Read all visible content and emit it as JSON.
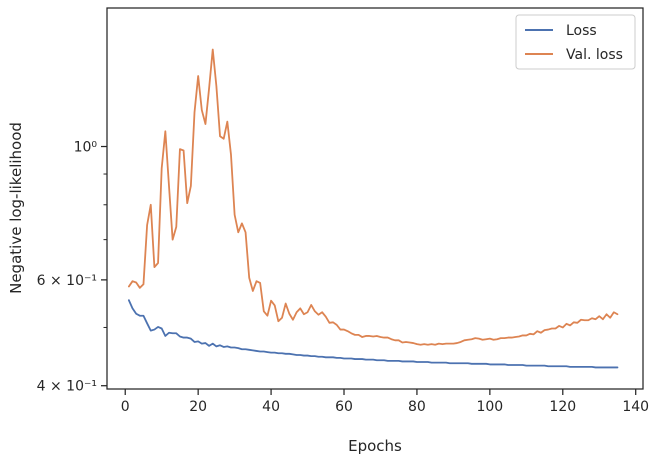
{
  "chart_data": {
    "type": "line",
    "xlabel": "Epochs",
    "ylabel": "Negative log-likelihood",
    "xlim": [
      -5,
      142
    ],
    "ylim": [
      0.395,
      1.7
    ],
    "yscale": "log",
    "grid": false,
    "legend_position": "top-right",
    "x_ticks": [
      0,
      20,
      40,
      60,
      80,
      100,
      120,
      140
    ],
    "x_tick_labels": [
      "0",
      "20",
      "40",
      "60",
      "80",
      "100",
      "120",
      "140"
    ],
    "y_major_ticks": [
      0.4,
      0.6,
      1.0
    ],
    "y_major_labels": [
      "4 × 10⁻¹",
      "6 × 10⁻¹",
      "10⁰"
    ],
    "y_minor_ticks": [
      0.5,
      0.7,
      0.8,
      0.9
    ],
    "series": [
      {
        "name": "Loss",
        "color": "#4c72b0",
        "x": [
          1,
          2,
          3,
          4,
          5,
          6,
          7,
          8,
          9,
          10,
          11,
          12,
          13,
          14,
          15,
          16,
          17,
          18,
          19,
          20,
          21,
          22,
          23,
          24,
          25,
          26,
          27,
          28,
          29,
          30,
          31,
          32,
          33,
          34,
          35,
          36,
          37,
          38,
          39,
          40,
          41,
          42,
          43,
          44,
          45,
          46,
          47,
          48,
          49,
          50,
          51,
          52,
          53,
          54,
          55,
          56,
          57,
          58,
          59,
          60,
          61,
          62,
          63,
          64,
          65,
          66,
          67,
          68,
          69,
          70,
          71,
          72,
          73,
          74,
          75,
          76,
          77,
          78,
          79,
          80,
          81,
          82,
          83,
          84,
          85,
          86,
          87,
          88,
          89,
          90,
          91,
          92,
          93,
          94,
          95,
          96,
          97,
          98,
          99,
          100,
          101,
          102,
          103,
          104,
          105,
          106,
          107,
          108,
          109,
          110,
          111,
          112,
          113,
          114,
          115,
          116,
          117,
          118,
          119,
          120,
          121,
          122,
          123,
          124,
          125,
          126,
          127,
          128,
          129,
          130,
          131,
          132,
          133,
          134,
          135
        ],
        "values": [
          0.555,
          0.538,
          0.527,
          0.523,
          0.523,
          0.508,
          0.494,
          0.496,
          0.501,
          0.498,
          0.484,
          0.49,
          0.489,
          0.489,
          0.483,
          0.481,
          0.481,
          0.479,
          0.473,
          0.474,
          0.47,
          0.471,
          0.466,
          0.47,
          0.465,
          0.467,
          0.464,
          0.465,
          0.463,
          0.463,
          0.462,
          0.46,
          0.46,
          0.459,
          0.458,
          0.457,
          0.456,
          0.456,
          0.455,
          0.454,
          0.454,
          0.453,
          0.453,
          0.452,
          0.452,
          0.451,
          0.45,
          0.45,
          0.449,
          0.449,
          0.448,
          0.448,
          0.447,
          0.447,
          0.446,
          0.446,
          0.446,
          0.445,
          0.445,
          0.444,
          0.444,
          0.444,
          0.443,
          0.443,
          0.443,
          0.442,
          0.442,
          0.442,
          0.441,
          0.441,
          0.441,
          0.44,
          0.44,
          0.44,
          0.44,
          0.439,
          0.439,
          0.439,
          0.439,
          0.438,
          0.438,
          0.438,
          0.438,
          0.437,
          0.437,
          0.437,
          0.437,
          0.437,
          0.436,
          0.436,
          0.436,
          0.436,
          0.436,
          0.436,
          0.435,
          0.435,
          0.435,
          0.435,
          0.435,
          0.434,
          0.434,
          0.434,
          0.434,
          0.434,
          0.433,
          0.433,
          0.433,
          0.433,
          0.433,
          0.432,
          0.432,
          0.432,
          0.432,
          0.432,
          0.432,
          0.431,
          0.431,
          0.431,
          0.431,
          0.431,
          0.431,
          0.43,
          0.43,
          0.43,
          0.43,
          0.43,
          0.43,
          0.43,
          0.429,
          0.429,
          0.429,
          0.429,
          0.429,
          0.429,
          0.429
        ]
      },
      {
        "name": "Val. loss",
        "color": "#dd8452",
        "x": [
          1,
          2,
          3,
          4,
          5,
          6,
          7,
          8,
          9,
          10,
          11,
          12,
          13,
          14,
          15,
          16,
          17,
          18,
          19,
          20,
          21,
          22,
          23,
          24,
          25,
          26,
          27,
          28,
          29,
          30,
          31,
          32,
          33,
          34,
          35,
          36,
          37,
          38,
          39,
          40,
          41,
          42,
          43,
          44,
          45,
          46,
          47,
          48,
          49,
          50,
          51,
          52,
          53,
          54,
          55,
          56,
          57,
          58,
          59,
          60,
          61,
          62,
          63,
          64,
          65,
          66,
          67,
          68,
          69,
          70,
          71,
          72,
          73,
          74,
          75,
          76,
          77,
          78,
          79,
          80,
          81,
          82,
          83,
          84,
          85,
          86,
          87,
          88,
          89,
          90,
          91,
          92,
          93,
          94,
          95,
          96,
          97,
          98,
          99,
          100,
          101,
          102,
          103,
          104,
          105,
          106,
          107,
          108,
          109,
          110,
          111,
          112,
          113,
          114,
          115,
          116,
          117,
          118,
          119,
          120,
          121,
          122,
          123,
          124,
          125,
          126,
          127,
          128,
          129,
          130,
          131,
          132,
          133,
          134,
          135
        ],
        "values": [
          0.585,
          0.597,
          0.594,
          0.582,
          0.59,
          0.74,
          0.8,
          0.63,
          0.64,
          0.92,
          1.06,
          0.86,
          0.7,
          0.735,
          0.99,
          0.985,
          0.805,
          0.86,
          1.14,
          1.31,
          1.15,
          1.09,
          1.25,
          1.45,
          1.26,
          1.04,
          1.03,
          1.1,
          0.97,
          0.77,
          0.72,
          0.745,
          0.72,
          0.605,
          0.575,
          0.597,
          0.593,
          0.532,
          0.523,
          0.554,
          0.544,
          0.512,
          0.519,
          0.548,
          0.527,
          0.515,
          0.53,
          0.538,
          0.526,
          0.53,
          0.545,
          0.532,
          0.525,
          0.53,
          0.521,
          0.509,
          0.51,
          0.505,
          0.496,
          0.496,
          0.493,
          0.489,
          0.486,
          0.486,
          0.482,
          0.484,
          0.484,
          0.483,
          0.484,
          0.482,
          0.481,
          0.481,
          0.478,
          0.476,
          0.476,
          0.472,
          0.473,
          0.472,
          0.471,
          0.469,
          0.468,
          0.469,
          0.468,
          0.469,
          0.468,
          0.47,
          0.469,
          0.47,
          0.47,
          0.47,
          0.471,
          0.473,
          0.476,
          0.477,
          0.478,
          0.48,
          0.479,
          0.477,
          0.478,
          0.479,
          0.477,
          0.478,
          0.48,
          0.48,
          0.481,
          0.481,
          0.482,
          0.483,
          0.485,
          0.485,
          0.488,
          0.487,
          0.493,
          0.49,
          0.495,
          0.496,
          0.498,
          0.498,
          0.503,
          0.5,
          0.507,
          0.504,
          0.51,
          0.509,
          0.515,
          0.514,
          0.514,
          0.518,
          0.516,
          0.522,
          0.516,
          0.526,
          0.519,
          0.53,
          0.526
        ]
      }
    ]
  }
}
